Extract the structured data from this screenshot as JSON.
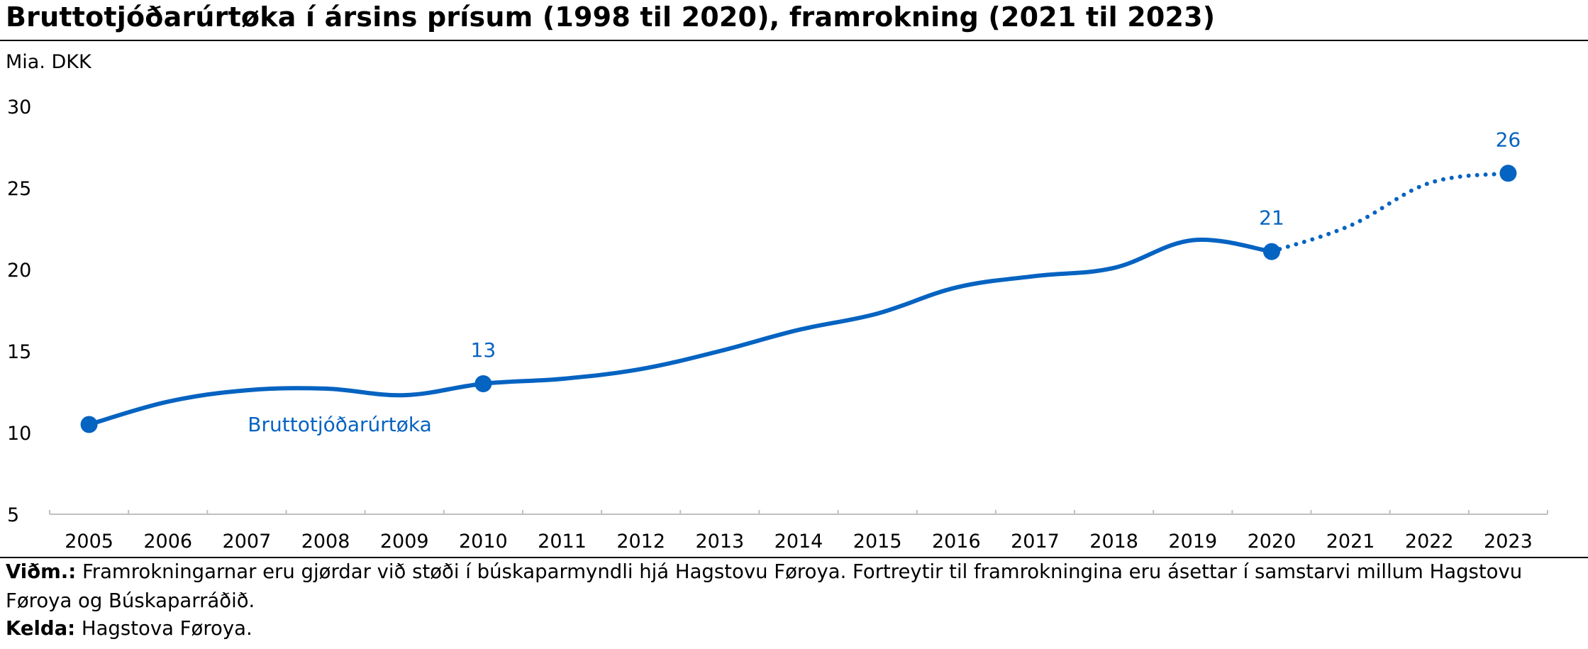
{
  "title": "Bruttotjóðarúrtøka í ársins prísum (1998 til 2020), framrokning (2021 til 2023)",
  "unit_label": "Mia. DKK",
  "note": {
    "label": "Viðm.:",
    "text": " Framrokningarnar eru gjørdar við støði í búskaparmyndli hjá Hagstovu Føroya. Fortreytir til framrokningina eru ásettar í samstarvi millum Hagstovu Føroya og Búskaparráðið."
  },
  "source": {
    "label": "Kelda:",
    "text": " Hagstova Føroya."
  },
  "chart_data": {
    "type": "line",
    "title": "Bruttotjóðarúrtøka í ársins prísum (1998 til 2020), framrokning (2021 til 2023)",
    "ylabel": "Mia. DKK",
    "xlabel": "",
    "ylim": [
      5,
      30
    ],
    "yticks": [
      5,
      10,
      15,
      20,
      25,
      30
    ],
    "grid": false,
    "legend": "none",
    "x": [
      2005,
      2006,
      2007,
      2008,
      2009,
      2010,
      2011,
      2012,
      2013,
      2014,
      2015,
      2016,
      2017,
      2018,
      2019,
      2020,
      2021,
      2022,
      2023
    ],
    "series": [
      {
        "name": "Bruttotjóðarúrtøka",
        "color": "#0563c1",
        "values": [
          10.5,
          11.9,
          12.6,
          12.7,
          12.3,
          13.0,
          13.3,
          13.9,
          15.0,
          16.3,
          17.3,
          18.9,
          19.6,
          20.1,
          21.8,
          21.1,
          22.7,
          25.3,
          25.9
        ],
        "projection_from": 2020
      }
    ],
    "data_labels": [
      {
        "x": 2010,
        "text": "13"
      },
      {
        "x": 2020,
        "text": "21"
      },
      {
        "x": 2023,
        "text": "26"
      }
    ],
    "marked_points": [
      2005,
      2010,
      2020,
      2023
    ],
    "series_label": {
      "text": "Bruttotjóðarúrtøka"
    }
  }
}
